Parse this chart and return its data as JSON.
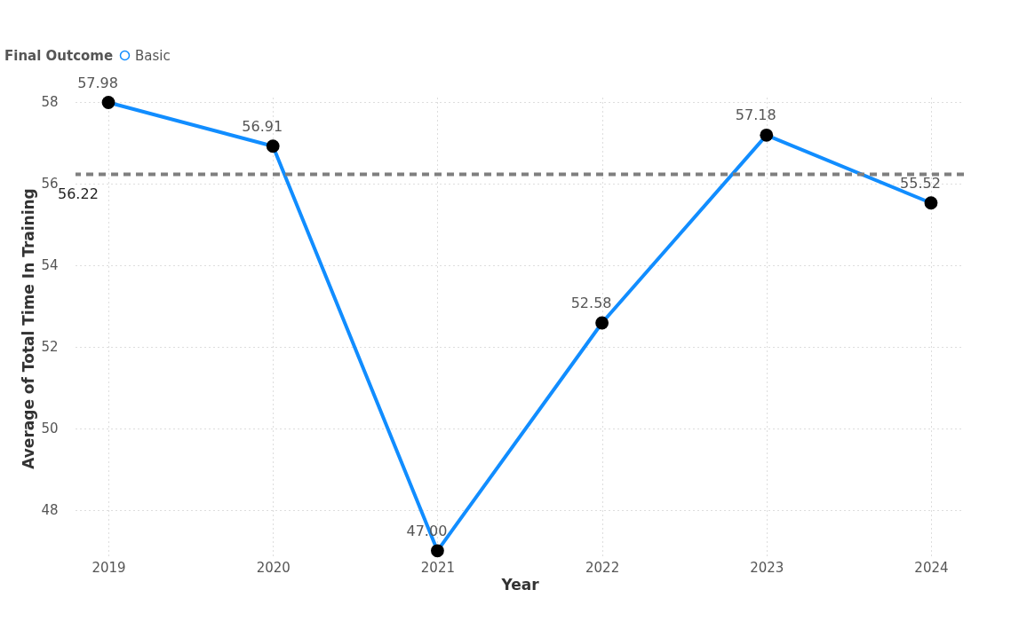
{
  "chart_data": {
    "type": "line",
    "xlabel": "Year",
    "ylabel": "Average of Total Time In Training",
    "legend_title": "Final Outcome",
    "categories": [
      "2019",
      "2020",
      "2021",
      "2022",
      "2023",
      "2024"
    ],
    "series": [
      {
        "name": "Basic",
        "color": "#118dff",
        "values": [
          57.98,
          56.91,
          47.0,
          52.58,
          57.18,
          55.52
        ],
        "value_labels": [
          "57.98",
          "56.91",
          "47.00",
          "52.58",
          "57.18",
          "55.52"
        ]
      }
    ],
    "ylim": [
      46.8,
      58.1
    ],
    "yticks": [
      48,
      50,
      52,
      54,
      56,
      58
    ],
    "ref_lines": [
      {
        "axis": "y",
        "value": 56.22,
        "label": "56.22",
        "color": "#7f7f7f",
        "line_style": "dashed"
      }
    ],
    "grid": true,
    "legend": "top left",
    "marker": "circle",
    "line_style": "solid"
  }
}
